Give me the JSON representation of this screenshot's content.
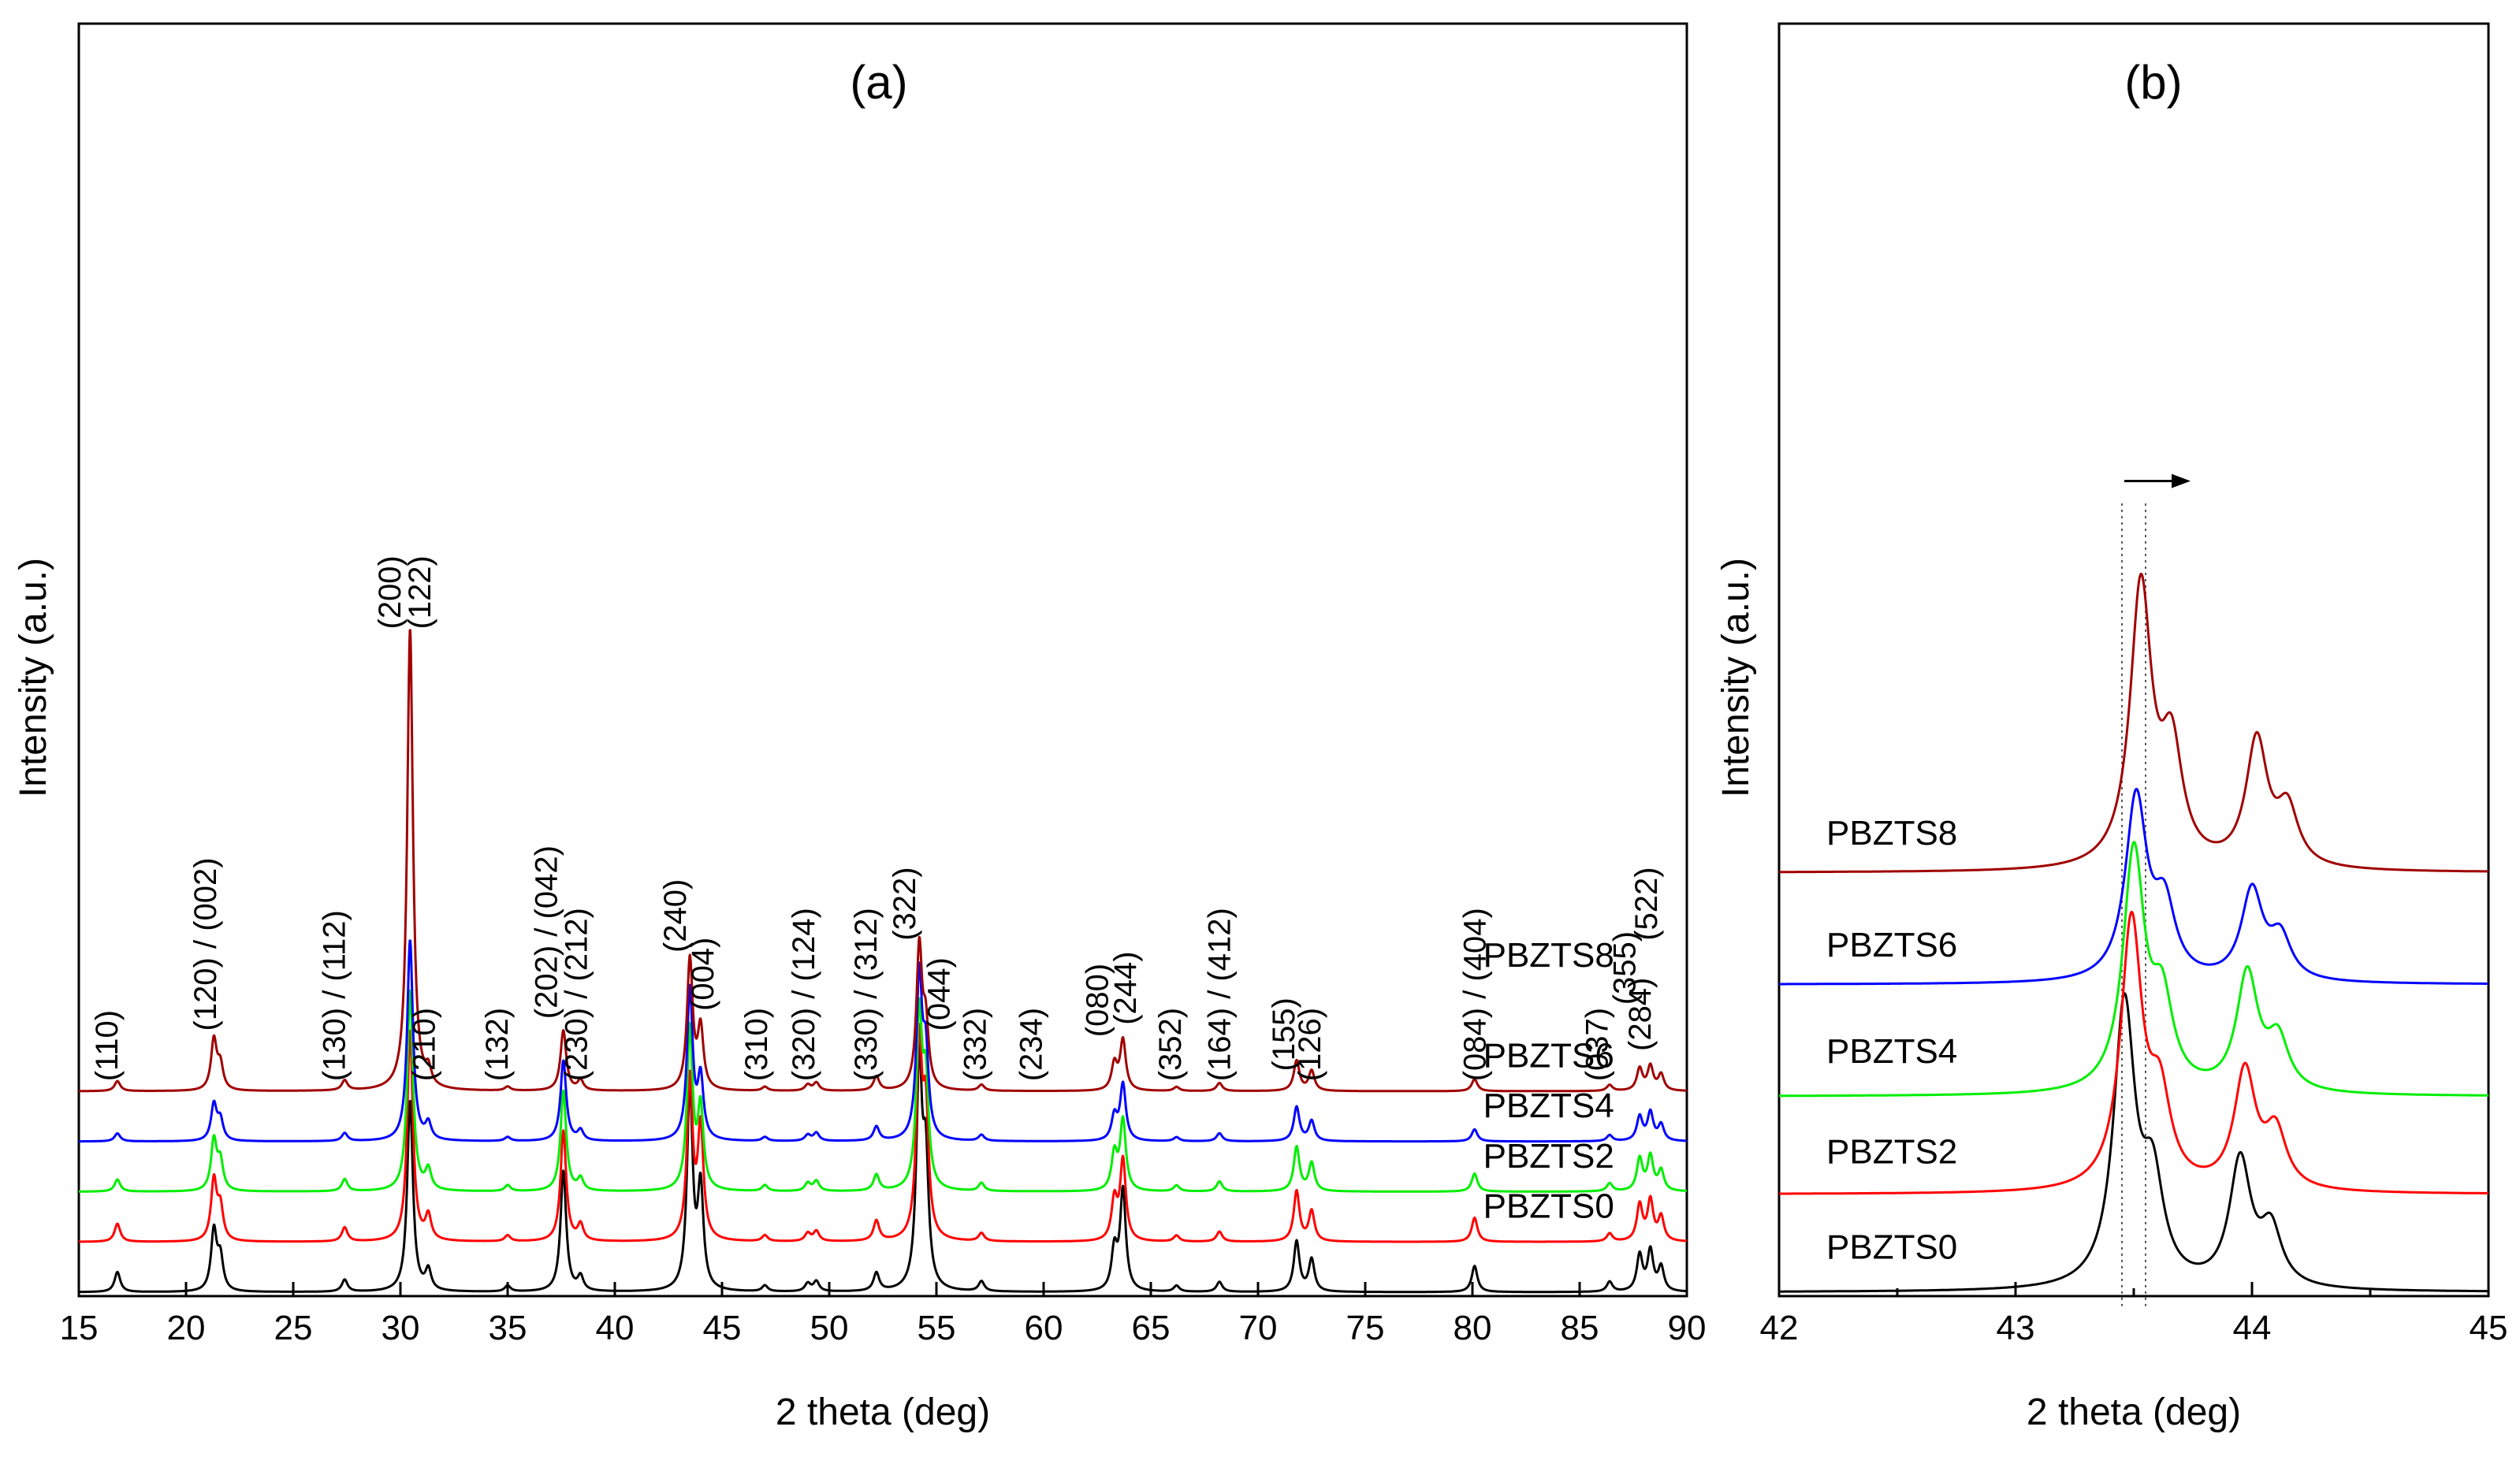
{
  "chart_data": [
    {
      "panel": "(a)",
      "type": "line",
      "xlabel": "2 theta (deg)",
      "ylabel": "Intensity (a.u.)",
      "xlim": [
        15,
        90
      ],
      "xticks": [
        15,
        20,
        25,
        30,
        35,
        40,
        45,
        50,
        55,
        60,
        65,
        70,
        75,
        80,
        85,
        90
      ],
      "series": [
        {
          "name": "PBZTS0",
          "color": "#000000",
          "baseline": 0.0,
          "peaks": [
            [
              16.8,
              0.1
            ],
            [
              21.3,
              0.3
            ],
            [
              21.6,
              0.16
            ],
            [
              27.4,
              0.06
            ],
            [
              30.45,
              0.95
            ],
            [
              31.3,
              0.1
            ],
            [
              35.0,
              0.03
            ],
            [
              37.6,
              0.6
            ],
            [
              38.4,
              0.07
            ],
            [
              43.5,
              1.0
            ],
            [
              44.0,
              0.5
            ],
            [
              47.0,
              0.03
            ],
            [
              49.0,
              0.04
            ],
            [
              49.4,
              0.05
            ],
            [
              52.2,
              0.09
            ],
            [
              54.2,
              1.1
            ],
            [
              54.5,
              0.6
            ],
            [
              57.1,
              0.05
            ],
            [
              63.3,
              0.2
            ],
            [
              63.7,
              0.5
            ],
            [
              66.2,
              0.03
            ],
            [
              68.2,
              0.05
            ],
            [
              71.8,
              0.25
            ],
            [
              72.5,
              0.16
            ],
            [
              80.1,
              0.13
            ],
            [
              86.4,
              0.05
            ],
            [
              87.8,
              0.18
            ],
            [
              88.3,
              0.2
            ],
            [
              88.8,
              0.12
            ]
          ]
        },
        {
          "name": "PBZTS2",
          "color": "#ff0000",
          "baseline": 0.25,
          "peaks": [
            [
              16.8,
              0.09
            ],
            [
              21.3,
              0.3
            ],
            [
              21.6,
              0.16
            ],
            [
              27.4,
              0.07
            ],
            [
              30.45,
              1.05
            ],
            [
              31.3,
              0.12
            ],
            [
              35.0,
              0.03
            ],
            [
              37.6,
              0.55
            ],
            [
              38.4,
              0.08
            ],
            [
              43.5,
              0.8
            ],
            [
              44.0,
              0.55
            ],
            [
              47.0,
              0.03
            ],
            [
              49.0,
              0.04
            ],
            [
              49.4,
              0.05
            ],
            [
              52.2,
              0.1
            ],
            [
              54.2,
              0.95
            ],
            [
              54.5,
              0.6
            ],
            [
              57.1,
              0.04
            ],
            [
              63.3,
              0.2
            ],
            [
              63.7,
              0.4
            ],
            [
              66.2,
              0.03
            ],
            [
              68.2,
              0.05
            ],
            [
              71.8,
              0.25
            ],
            [
              72.5,
              0.15
            ],
            [
              80.1,
              0.12
            ],
            [
              86.4,
              0.04
            ],
            [
              87.8,
              0.18
            ],
            [
              88.3,
              0.2
            ],
            [
              88.8,
              0.12
            ]
          ]
        },
        {
          "name": "PBZTS4",
          "color": "#00ee00",
          "baseline": 0.5,
          "peaks": [
            [
              16.8,
              0.06
            ],
            [
              21.3,
              0.25
            ],
            [
              21.6,
              0.14
            ],
            [
              27.4,
              0.06
            ],
            [
              30.45,
              1.0
            ],
            [
              31.3,
              0.1
            ],
            [
              35.0,
              0.03
            ],
            [
              37.6,
              0.5
            ],
            [
              38.4,
              0.06
            ],
            [
              43.5,
              0.8
            ],
            [
              44.0,
              0.4
            ],
            [
              47.0,
              0.03
            ],
            [
              49.0,
              0.04
            ],
            [
              49.4,
              0.05
            ],
            [
              52.2,
              0.08
            ],
            [
              54.2,
              0.85
            ],
            [
              54.5,
              0.5
            ],
            [
              57.1,
              0.04
            ],
            [
              63.3,
              0.18
            ],
            [
              63.7,
              0.35
            ],
            [
              66.2,
              0.03
            ],
            [
              68.2,
              0.05
            ],
            [
              71.8,
              0.22
            ],
            [
              72.5,
              0.14
            ],
            [
              80.1,
              0.09
            ],
            [
              86.4,
              0.04
            ],
            [
              87.8,
              0.16
            ],
            [
              88.3,
              0.17
            ],
            [
              88.8,
              0.1
            ]
          ]
        },
        {
          "name": "PBZTS6",
          "color": "#0000ff",
          "baseline": 0.75,
          "peaks": [
            [
              16.8,
              0.04
            ],
            [
              21.3,
              0.18
            ],
            [
              21.6,
              0.1
            ],
            [
              27.4,
              0.04
            ],
            [
              30.45,
              1.0
            ],
            [
              31.3,
              0.08
            ],
            [
              35.0,
              0.02
            ],
            [
              37.6,
              0.4
            ],
            [
              38.4,
              0.05
            ],
            [
              43.5,
              0.75
            ],
            [
              44.0,
              0.3
            ],
            [
              47.0,
              0.02
            ],
            [
              49.0,
              0.03
            ],
            [
              49.4,
              0.04
            ],
            [
              52.2,
              0.07
            ],
            [
              54.2,
              0.8
            ],
            [
              54.5,
              0.4
            ],
            [
              57.1,
              0.03
            ],
            [
              63.3,
              0.12
            ],
            [
              63.7,
              0.28
            ],
            [
              66.2,
              0.02
            ],
            [
              68.2,
              0.04
            ],
            [
              71.8,
              0.17
            ],
            [
              72.5,
              0.1
            ],
            [
              80.1,
              0.06
            ],
            [
              86.4,
              0.03
            ],
            [
              87.8,
              0.12
            ],
            [
              88.3,
              0.14
            ],
            [
              88.8,
              0.08
            ]
          ]
        },
        {
          "name": "PBZTS8",
          "color": "#a00000",
          "baseline": 1.0,
          "peaks": [
            [
              16.8,
              0.05
            ],
            [
              21.3,
              0.25
            ],
            [
              21.6,
              0.12
            ],
            [
              27.4,
              0.05
            ],
            [
              30.45,
              2.3
            ],
            [
              31.3,
              0.08
            ],
            [
              35.0,
              0.02
            ],
            [
              37.6,
              0.3
            ],
            [
              38.4,
              0.05
            ],
            [
              43.5,
              0.65
            ],
            [
              44.0,
              0.3
            ],
            [
              47.0,
              0.02
            ],
            [
              49.0,
              0.03
            ],
            [
              49.4,
              0.04
            ],
            [
              52.2,
              0.07
            ],
            [
              54.2,
              0.7
            ],
            [
              54.5,
              0.3
            ],
            [
              57.1,
              0.03
            ],
            [
              63.3,
              0.13
            ],
            [
              63.7,
              0.25
            ],
            [
              66.2,
              0.02
            ],
            [
              68.2,
              0.04
            ],
            [
              71.8,
              0.15
            ],
            [
              72.5,
              0.1
            ],
            [
              80.1,
              0.06
            ],
            [
              86.4,
              0.03
            ],
            [
              87.8,
              0.11
            ],
            [
              88.3,
              0.12
            ],
            [
              88.8,
              0.08
            ]
          ]
        }
      ],
      "sample_labels": [
        {
          "text": "PBZTS8",
          "x": 80.5,
          "y": 1.62
        },
        {
          "text": "PBZTS6",
          "x": 80.5,
          "y": 1.12
        },
        {
          "text": "PBZTS4",
          "x": 80.5,
          "y": 0.87
        },
        {
          "text": "PBZTS2",
          "x": 80.5,
          "y": 0.62
        },
        {
          "text": "PBZTS0",
          "x": 80.5,
          "y": 0.37
        }
      ],
      "annotations": [
        {
          "text": "(110)",
          "x": 16.8,
          "y": 1.05
        },
        {
          "text": "(120) / (002)",
          "x": 21.4,
          "y": 1.3
        },
        {
          "text": "(130) / (112)",
          "x": 27.4,
          "y": 1.05
        },
        {
          "text": "(200)",
          "x": 30.0,
          "y": 3.3
        },
        {
          "text": "(122)",
          "x": 31.4,
          "y": 3.3
        },
        {
          "text": "(210)",
          "x": 31.6,
          "y": 1.05
        },
        {
          "text": "(132)",
          "x": 35.0,
          "y": 1.05
        },
        {
          "text": "(202) / (042)",
          "x": 37.3,
          "y": 1.36
        },
        {
          "text": "(230) / (212)",
          "x": 38.7,
          "y": 1.05
        },
        {
          "text": "(240)",
          "x": 43.3,
          "y": 1.69
        },
        {
          "text": "(004)",
          "x": 44.6,
          "y": 1.4
        },
        {
          "text": "(310)",
          "x": 47.1,
          "y": 1.05
        },
        {
          "text": "(320) / (124)",
          "x": 49.3,
          "y": 1.05
        },
        {
          "text": "(330) / (312)",
          "x": 52.2,
          "y": 1.05
        },
        {
          "text": "(322)",
          "x": 54.0,
          "y": 1.75
        },
        {
          "text": "(044)",
          "x": 55.6,
          "y": 1.3
        },
        {
          "text": "(332)",
          "x": 57.3,
          "y": 1.05
        },
        {
          "text": "(234)",
          "x": 59.9,
          "y": 1.05
        },
        {
          "text": "(080)",
          "x": 63.0,
          "y": 1.27
        },
        {
          "text": "(244)",
          "x": 64.3,
          "y": 1.33
        },
        {
          "text": "(352)",
          "x": 66.4,
          "y": 1.05
        },
        {
          "text": "(164) / (412)",
          "x": 68.7,
          "y": 1.05
        },
        {
          "text": "(155)",
          "x": 71.7,
          "y": 1.1
        },
        {
          "text": "(126)",
          "x": 72.9,
          "y": 1.05
        },
        {
          "text": "(084) / (404)",
          "x": 80.6,
          "y": 1.05
        },
        {
          "text": "(037)",
          "x": 86.3,
          "y": 1.05
        },
        {
          "text": "(355)",
          "x": 87.6,
          "y": 1.43
        },
        {
          "text": "(284)",
          "x": 88.3,
          "y": 1.2
        },
        {
          "text": "(522)",
          "x": 88.6,
          "y": 1.75
        }
      ]
    },
    {
      "panel": "(b)",
      "type": "line",
      "xlabel": "2 theta (deg)",
      "ylabel": "Intensity (a.u.)",
      "xlim": [
        42,
        45
      ],
      "xticks": [
        42,
        43,
        44,
        45
      ],
      "series": [
        {
          "name": "PBZTS0",
          "color": "#000000",
          "baseline": 0.0,
          "peaks": [
            [
              43.46,
              1.0
            ],
            [
              43.58,
              0.35
            ],
            [
              43.95,
              0.45
            ],
            [
              44.08,
              0.2
            ]
          ]
        },
        {
          "name": "PBZTS2",
          "color": "#ff0000",
          "baseline": 0.35,
          "peaks": [
            [
              43.49,
              0.95
            ],
            [
              43.61,
              0.3
            ],
            [
              43.97,
              0.42
            ],
            [
              44.1,
              0.2
            ]
          ]
        },
        {
          "name": "PBZTS4",
          "color": "#00ee00",
          "baseline": 0.7,
          "peaks": [
            [
              43.5,
              0.85
            ],
            [
              43.62,
              0.3
            ],
            [
              43.98,
              0.42
            ],
            [
              44.11,
              0.18
            ]
          ]
        },
        {
          "name": "PBZTS6",
          "color": "#0000ff",
          "baseline": 1.1,
          "peaks": [
            [
              43.51,
              0.65
            ],
            [
              43.63,
              0.25
            ],
            [
              44.0,
              0.32
            ],
            [
              44.12,
              0.15
            ]
          ]
        },
        {
          "name": "PBZTS8",
          "color": "#a00000",
          "baseline": 1.5,
          "peaks": [
            [
              43.53,
              1.0
            ],
            [
              43.66,
              0.4
            ],
            [
              44.02,
              0.45
            ],
            [
              44.15,
              0.2
            ]
          ]
        }
      ],
      "sample_labels": [
        {
          "text": "PBZTS8",
          "x": 42.2,
          "y": 1.6
        },
        {
          "text": "PBZTS6",
          "x": 42.2,
          "y": 1.2
        },
        {
          "text": "PBZTS4",
          "x": 42.2,
          "y": 0.82
        },
        {
          "text": "PBZTS2",
          "x": 42.2,
          "y": 0.46
        },
        {
          "text": "PBZTS0",
          "x": 42.2,
          "y": 0.12
        }
      ],
      "reference_lines": [
        43.45,
        43.55
      ],
      "shift_arrow": {
        "from": 43.46,
        "to": 43.74,
        "y": 2.9
      }
    }
  ]
}
